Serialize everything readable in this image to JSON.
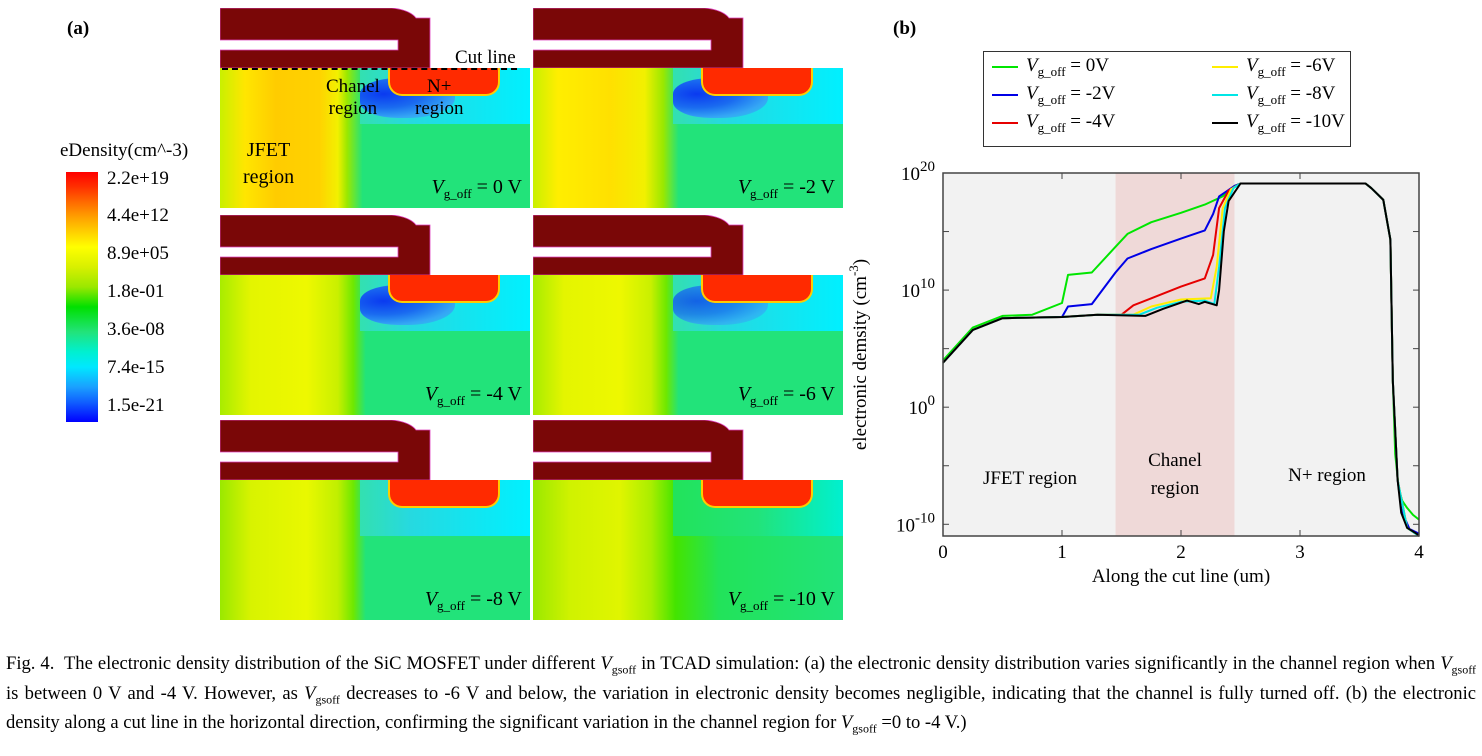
{
  "figure": {
    "panel_a_label": "(a)",
    "panel_b_label": "(b)",
    "cut_line_label": "Cut line",
    "region_labels_a": {
      "chanel": "Chanel",
      "chanel2": "region",
      "nplus": "N+",
      "nplus2": "region",
      "jfet": "JFET",
      "jfet2": "region"
    },
    "colorbar": {
      "title": "eDensity(cm^-3)",
      "ticks": [
        "2.2e+19",
        "4.4e+12",
        "8.9e+05",
        "1.8e-01",
        "3.6e-08",
        "7.4e-15",
        "1.5e-21"
      ]
    },
    "panels": [
      {
        "v_symbol": "V",
        "v_sub": "g_off",
        "v_text": " = 0 V"
      },
      {
        "v_symbol": "V",
        "v_sub": "g_off",
        "v_text": " = -2 V"
      },
      {
        "v_symbol": "V",
        "v_sub": "g_off",
        "v_text": " = -4 V"
      },
      {
        "v_symbol": "V",
        "v_sub": "g_off",
        "v_text": " = -6 V"
      },
      {
        "v_symbol": "V",
        "v_sub": "g_off",
        "v_text": " = -8 V"
      },
      {
        "v_symbol": "V",
        "v_sub": "g_off",
        "v_text": " = -10 V"
      }
    ]
  },
  "chart_data": {
    "type": "line",
    "title": "",
    "xlabel": "Along the cut line (um)",
    "ylabel": "electronic demsity (cm",
    "ylabel_sup": "-3",
    "ylabel_end": ")",
    "xlim": [
      0,
      4
    ],
    "ylim_log10": [
      -11,
      20
    ],
    "yscale": "log",
    "x_ticks": [
      "0",
      "1",
      "2",
      "3",
      "4"
    ],
    "x_tick_values": [
      0,
      1,
      2,
      3,
      4
    ],
    "y_ticks": [
      {
        "base": "10",
        "exp": "20",
        "value": 20
      },
      {
        "base": "10",
        "exp": "10",
        "value": 10
      },
      {
        "base": "10",
        "exp": "0",
        "value": 0
      },
      {
        "base": "10",
        "exp": "-10",
        "value": -10
      }
    ],
    "grid": false,
    "legend_position": "top",
    "shaded_regions": [
      {
        "label": "JFET region",
        "x": [
          0,
          1.45
        ],
        "color": "#f2f2f2"
      },
      {
        "label": "Chanel region",
        "x": [
          1.45,
          2.45
        ],
        "color": "#efd9d8"
      },
      {
        "label": "N+ region",
        "x": [
          2.45,
          4
        ],
        "color": "#f2f2f2"
      }
    ],
    "region_text": {
      "jfet": "JFET region",
      "chanel1": "Chanel",
      "chanel2": "region",
      "nplus": "N+ region"
    },
    "series": [
      {
        "name": "V_g_off = 0V",
        "label_sym": "V",
        "label_sub": "g_off",
        "label_text": " = 0V",
        "color": "#00e600",
        "points_log10": [
          [
            0,
            4.0
          ],
          [
            0.25,
            6.8
          ],
          [
            0.5,
            7.8
          ],
          [
            0.75,
            7.9
          ],
          [
            1.0,
            8.9
          ],
          [
            1.05,
            11.3
          ],
          [
            1.25,
            11.5
          ],
          [
            1.45,
            13.7
          ],
          [
            1.55,
            14.8
          ],
          [
            1.75,
            15.8
          ],
          [
            2.0,
            16.6
          ],
          [
            2.2,
            17.3
          ],
          [
            2.35,
            18.0
          ],
          [
            2.45,
            18.9
          ],
          [
            2.5,
            19.1
          ],
          [
            3.55,
            19.1
          ],
          [
            3.6,
            18.7
          ],
          [
            3.7,
            17.7
          ],
          [
            3.76,
            14.3
          ],
          [
            3.78,
            2.3
          ],
          [
            3.8,
            -4.0
          ],
          [
            3.83,
            -7.0
          ],
          [
            3.86,
            -8.0
          ],
          [
            3.9,
            -8.6
          ],
          [
            3.95,
            -9.2
          ],
          [
            4.0,
            -9.6
          ]
        ]
      },
      {
        "name": "V_g_off = -2V",
        "label_sym": "V",
        "label_sub": "g_off",
        "label_text": " = -2V",
        "color": "#0000e6",
        "points_log10": [
          [
            0,
            3.8
          ],
          [
            0.25,
            6.6
          ],
          [
            0.5,
            7.6
          ],
          [
            1.0,
            7.7
          ],
          [
            1.05,
            8.6
          ],
          [
            1.25,
            8.8
          ],
          [
            1.45,
            11.5
          ],
          [
            1.55,
            12.7
          ],
          [
            1.75,
            13.5
          ],
          [
            2.0,
            14.4
          ],
          [
            2.2,
            15.1
          ],
          [
            2.27,
            16.5
          ],
          [
            2.32,
            18.0
          ],
          [
            2.45,
            18.9
          ],
          [
            2.5,
            19.1
          ],
          [
            3.55,
            19.1
          ],
          [
            3.6,
            18.7
          ],
          [
            3.7,
            17.7
          ],
          [
            3.76,
            14.3
          ],
          [
            3.78,
            2.3
          ],
          [
            3.82,
            -6.2
          ],
          [
            3.86,
            -9.0
          ],
          [
            3.92,
            -10.4
          ],
          [
            4.0,
            -10.8
          ]
        ]
      },
      {
        "name": "V_g_off = -4V",
        "label_sym": "V",
        "label_sub": "g_off",
        "label_text": " = -4V",
        "color": "#e60000",
        "points_log10": [
          [
            0,
            3.8
          ],
          [
            0.25,
            6.6
          ],
          [
            0.5,
            7.6
          ],
          [
            1.0,
            7.7
          ],
          [
            1.3,
            7.9
          ],
          [
            1.5,
            7.9
          ],
          [
            1.6,
            8.7
          ],
          [
            1.75,
            9.3
          ],
          [
            2.0,
            10.3
          ],
          [
            2.2,
            11.0
          ],
          [
            2.27,
            13.0
          ],
          [
            2.32,
            17.0
          ],
          [
            2.4,
            18.5
          ],
          [
            2.5,
            19.1
          ],
          [
            3.55,
            19.1
          ],
          [
            3.6,
            18.7
          ],
          [
            3.7,
            17.7
          ],
          [
            3.76,
            14.3
          ],
          [
            3.78,
            2.3
          ],
          [
            3.82,
            -6.2
          ],
          [
            3.9,
            -10.3
          ],
          [
            4.0,
            -11
          ]
        ]
      },
      {
        "name": "V_g_off = -6V",
        "label_sym": "V",
        "label_sub": "g_off",
        "label_text": " = -6V",
        "color": "#ffee00",
        "points_log10": [
          [
            0,
            3.8
          ],
          [
            0.25,
            6.6
          ],
          [
            0.5,
            7.6
          ],
          [
            1.0,
            7.7
          ],
          [
            1.3,
            7.9
          ],
          [
            1.6,
            7.9
          ],
          [
            1.75,
            8.6
          ],
          [
            2.0,
            9.2
          ],
          [
            2.25,
            9.3
          ],
          [
            2.3,
            12.0
          ],
          [
            2.35,
            17.0
          ],
          [
            2.42,
            18.6
          ],
          [
            2.5,
            19.1
          ],
          [
            3.55,
            19.1
          ],
          [
            3.6,
            18.7
          ],
          [
            3.7,
            17.7
          ],
          [
            3.76,
            14.3
          ],
          [
            3.78,
            2.3
          ],
          [
            3.82,
            -6.2
          ],
          [
            3.9,
            -10.3
          ],
          [
            4.0,
            -11
          ]
        ]
      },
      {
        "name": "V_g_off = -8V",
        "label_sym": "V",
        "label_sub": "g_off",
        "label_text": " = -8V",
        "color": "#00e6e6",
        "points_log10": [
          [
            0,
            3.8
          ],
          [
            0.25,
            6.6
          ],
          [
            0.5,
            7.6
          ],
          [
            1.0,
            7.7
          ],
          [
            1.3,
            7.9
          ],
          [
            1.65,
            7.9
          ],
          [
            1.8,
            8.5
          ],
          [
            2.0,
            9.0
          ],
          [
            2.2,
            9.1
          ],
          [
            2.28,
            8.8
          ],
          [
            2.32,
            12.0
          ],
          [
            2.37,
            17.0
          ],
          [
            2.44,
            18.7
          ],
          [
            2.5,
            19.1
          ],
          [
            3.55,
            19.1
          ],
          [
            3.6,
            18.7
          ],
          [
            3.7,
            17.7
          ],
          [
            3.76,
            14.3
          ],
          [
            3.78,
            2.3
          ],
          [
            3.82,
            -6.2
          ],
          [
            3.9,
            -10.3
          ],
          [
            4.0,
            -11
          ]
        ]
      },
      {
        "name": "V_g_off = -10V",
        "label_sym": "V",
        "label_sub": "g_off",
        "label_text": " = -10V",
        "color": "#000000",
        "points_log10": [
          [
            0,
            3.8
          ],
          [
            0.25,
            6.6
          ],
          [
            0.5,
            7.6
          ],
          [
            1.0,
            7.7
          ],
          [
            1.3,
            7.9
          ],
          [
            1.7,
            7.8
          ],
          [
            1.85,
            8.4
          ],
          [
            2.05,
            9.1
          ],
          [
            2.15,
            8.8
          ],
          [
            2.2,
            9.0
          ],
          [
            2.3,
            8.7
          ],
          [
            2.32,
            10.0
          ],
          [
            2.36,
            15.0
          ],
          [
            2.4,
            17.6
          ],
          [
            2.5,
            19.1
          ],
          [
            3.55,
            19.1
          ],
          [
            3.6,
            18.7
          ],
          [
            3.7,
            17.7
          ],
          [
            3.76,
            14.3
          ],
          [
            3.78,
            2.3
          ],
          [
            3.82,
            -6.2
          ],
          [
            3.85,
            -9.0
          ],
          [
            3.9,
            -10.3
          ],
          [
            3.98,
            -10.8
          ],
          [
            4.0,
            -11
          ]
        ]
      }
    ]
  },
  "caption": {
    "fig": "Fig. 4.",
    "t1": "The electronic density distribution of the SiC MOSFET under different ",
    "v": "V",
    "vsub": "gsoff",
    "t2": " in TCAD simulation: (a) the electronic density distribution varies significantly in the channel region when ",
    "t3": " is between 0 V and -4 V. However, as ",
    "t4": " decreases to -6 V and below, the variation in electronic density becomes negligible, indicating that the channel is fully turned off. (b) the electronic density along a cut line in the horizontal direction, confirming the significant variation in the channel region for ",
    "t5": " =0 to -4 V.)"
  }
}
